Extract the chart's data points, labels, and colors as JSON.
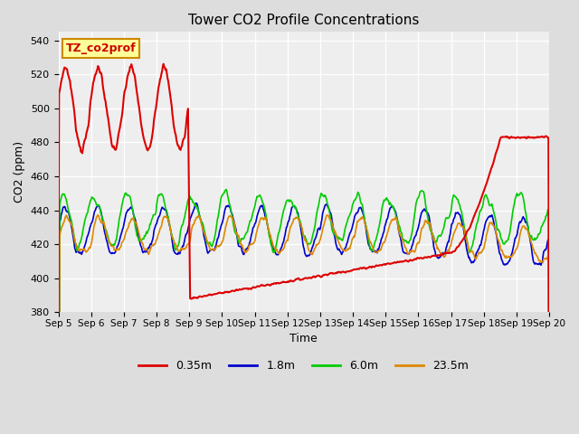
{
  "title": "Tower CO2 Profile Concentrations",
  "xlabel": "Time",
  "ylabel": "CO2 (ppm)",
  "ylim": [
    380,
    545
  ],
  "yticks": [
    380,
    400,
    420,
    440,
    460,
    480,
    500,
    520,
    540
  ],
  "bg_color": "#dddddd",
  "plot_bg_color": "#eeeeee",
  "annotation_text": "TZ_co2prof",
  "annotation_bg": "#ffff99",
  "annotation_border": "#cc8800",
  "legend_entries": [
    "0.35m",
    "1.8m",
    "6.0m",
    "23.5m"
  ],
  "line_colors": [
    "#dd0000",
    "#0000cc",
    "#00cc00",
    "#dd8800"
  ],
  "n_days": 15,
  "pts_per_day": 48,
  "seed": 7
}
